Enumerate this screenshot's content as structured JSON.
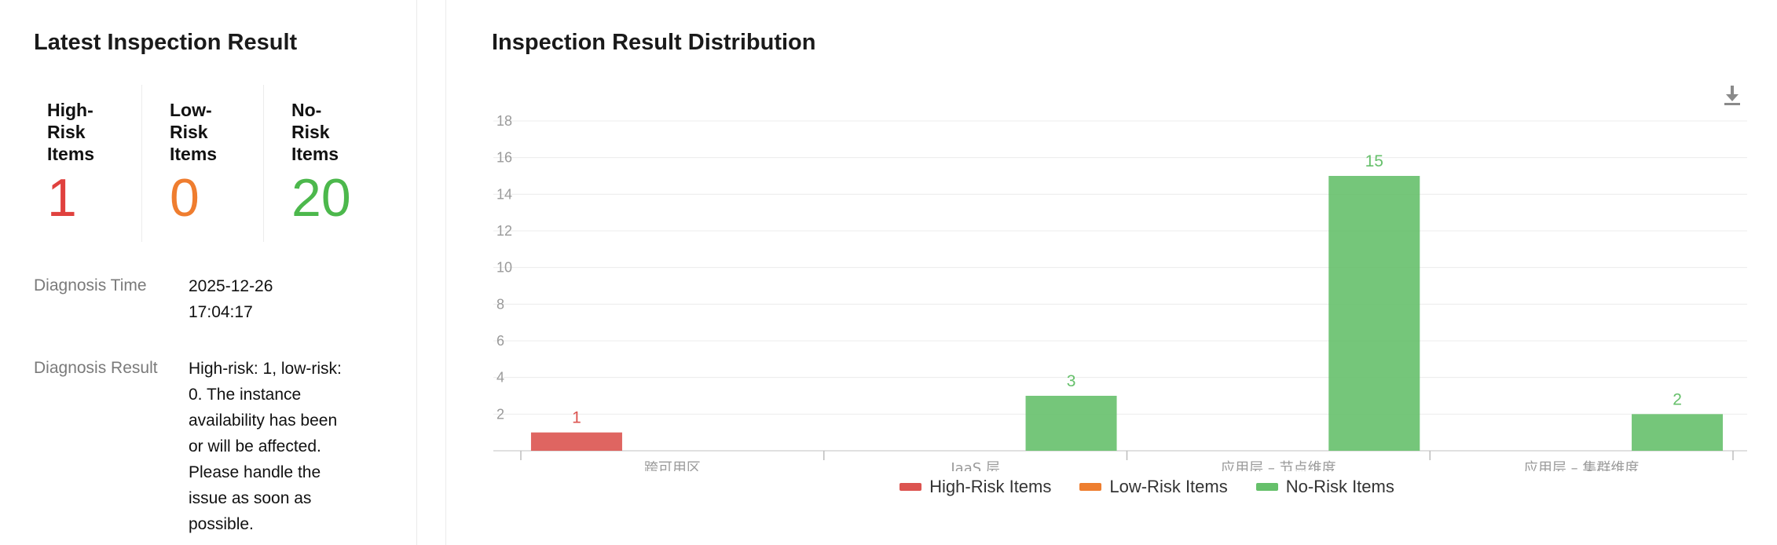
{
  "left": {
    "title": "Latest Inspection Result",
    "stats": [
      {
        "label": "High-\nRisk\nItems",
        "value": "1",
        "color": "#e0413e"
      },
      {
        "label": "Low-\nRisk\nItems",
        "value": "0",
        "color": "#ef7d2f"
      },
      {
        "label": "No-\nRisk\nItems",
        "value": "20",
        "color": "#4cb84c"
      }
    ],
    "diagnosis_time_label": "Diagnosis Time",
    "diagnosis_time_value": "2025-12-26 17:04:17",
    "diagnosis_result_label": "Diagnosis Result",
    "diagnosis_result_value": "High-risk: 1, low-risk: 0. The instance availability has been or will be affected. Please handle the issue as soon as possible."
  },
  "right": {
    "title": "Inspection Result Distribution",
    "download_icon": "download-icon"
  },
  "chart_data": {
    "type": "bar",
    "title": "",
    "xlabel": "",
    "ylabel": "",
    "categories": [
      "跨可用区",
      "IaaS 层",
      "应用层 – 节点维度",
      "应用层 – 集群维度"
    ],
    "series": [
      {
        "name": "High-Risk Items",
        "color": "#dc5450",
        "values": [
          1,
          0,
          0,
          0
        ]
      },
      {
        "name": "Low-Risk Items",
        "color": "#ee7e2f",
        "values": [
          0,
          0,
          0,
          0
        ]
      },
      {
        "name": "No-Risk Items",
        "color": "#66c06b",
        "values": [
          0,
          3,
          15,
          2
        ]
      }
    ],
    "ylim": [
      0,
      18
    ],
    "yticks": [
      2,
      4,
      6,
      8,
      10,
      12,
      14,
      16,
      18
    ],
    "grid": true,
    "legend": "bottom"
  }
}
